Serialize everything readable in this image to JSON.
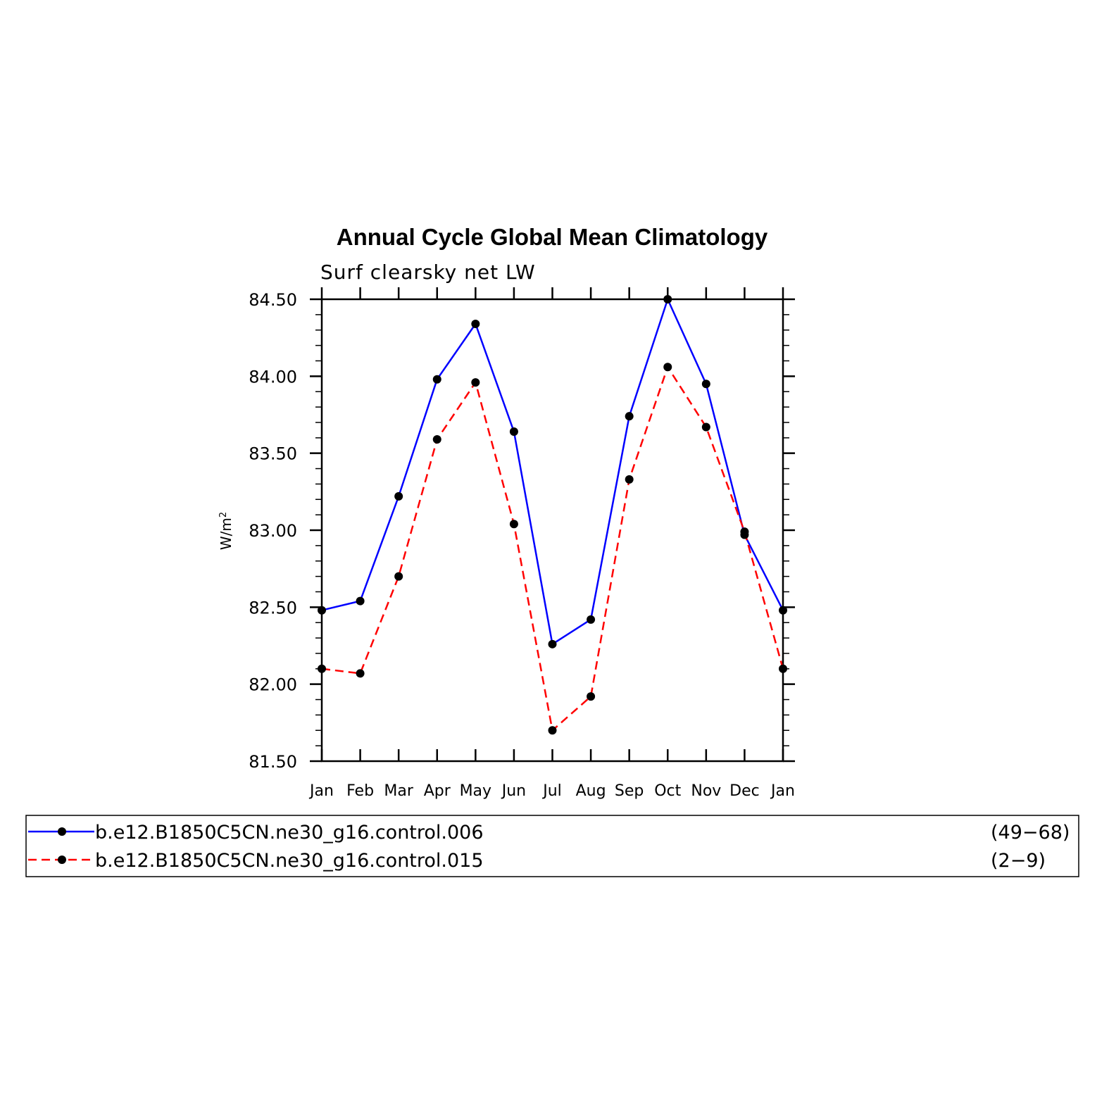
{
  "chart_data": {
    "type": "line",
    "title": "Annual Cycle Global Mean Climatology",
    "subtitle": "Surf clearsky net LW",
    "ylabel": "W/m",
    "ylabel_sup": "2",
    "xlabel": "",
    "categories": [
      "Jan",
      "Feb",
      "Mar",
      "Apr",
      "May",
      "Jun",
      "Jul",
      "Aug",
      "Sep",
      "Oct",
      "Nov",
      "Dec",
      "Jan"
    ],
    "ylim": [
      81.5,
      84.5
    ],
    "yticks": [
      "81.50",
      "82.00",
      "82.50",
      "83.00",
      "83.50",
      "84.00",
      "84.50"
    ],
    "series": [
      {
        "name": "b.e12.B1850C5CN.ne30_g16.control.006",
        "years": "(49−68)",
        "color": "#0000ff",
        "dash": "solid",
        "values": [
          82.48,
          82.54,
          83.22,
          83.98,
          84.34,
          83.64,
          82.26,
          82.42,
          83.74,
          84.5,
          83.95,
          82.97,
          82.48
        ]
      },
      {
        "name": "b.e12.B1850C5CN.ne30_g16.control.015",
        "years": "(2−9)",
        "color": "#ff0000",
        "dash": "dashed",
        "values": [
          82.1,
          82.07,
          82.7,
          83.59,
          83.96,
          83.04,
          81.7,
          81.92,
          83.33,
          84.06,
          83.67,
          82.99,
          82.1
        ]
      }
    ],
    "grid": false,
    "legend_position": "bottom"
  }
}
